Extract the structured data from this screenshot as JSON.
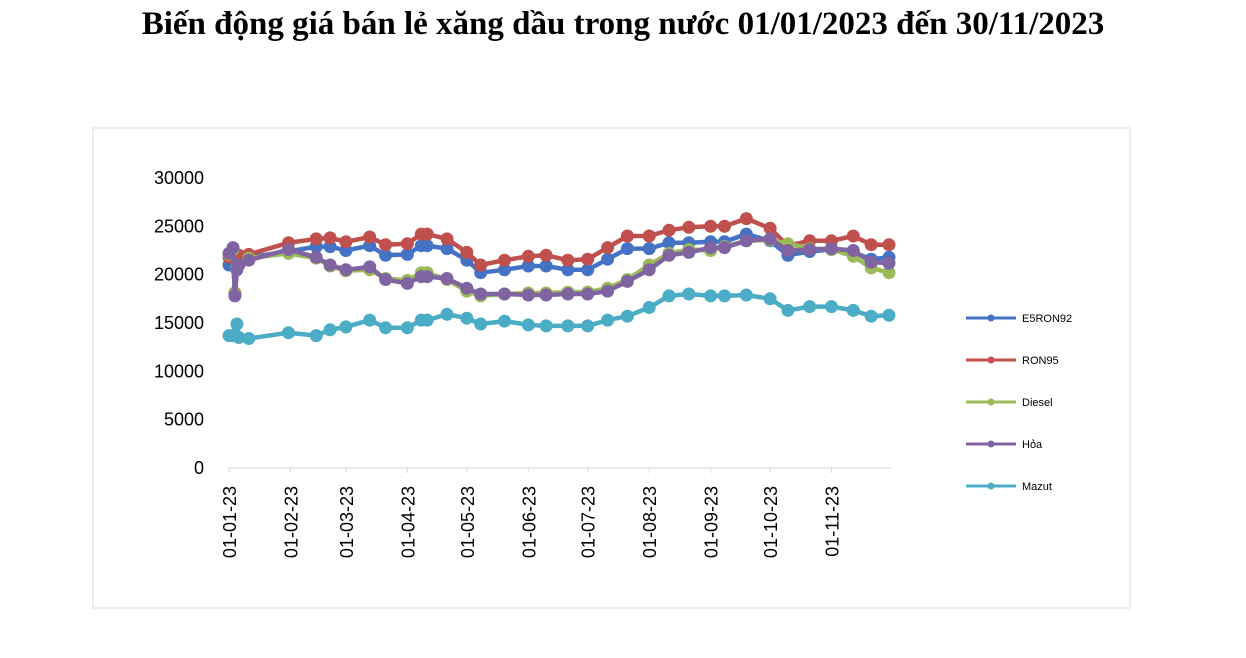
{
  "page_title": "Biến động giá bán lẻ xăng dầu trong nước 01/01/2023 đến 30/11/2023",
  "chart_data": {
    "type": "line",
    "title": "",
    "xlabel": "",
    "ylabel": "",
    "ylim": [
      0,
      30000
    ],
    "yticks": [
      0,
      5000,
      10000,
      15000,
      20000,
      25000,
      30000
    ],
    "x_tick_labels": [
      "01-01-23",
      "01-02-23",
      "01-03-23",
      "01-04-23",
      "01-05-23",
      "01-06-23",
      "01-07-23",
      "01-08-23",
      "01-09-23",
      "01-10-23",
      "01-11-23"
    ],
    "x_tick_dates": [
      "2023-01-01",
      "2023-02-01",
      "2023-03-01",
      "2023-04-01",
      "2023-05-01",
      "2023-06-01",
      "2023-07-01",
      "2023-08-01",
      "2023-09-01",
      "2023-10-01",
      "2023-11-01"
    ],
    "xlim": [
      "2023-01-01",
      "2023-12-01"
    ],
    "grid": false,
    "legend_position": "right",
    "dates": [
      "2023-01-01",
      "2023-01-03",
      "2023-01-04",
      "2023-01-05",
      "2023-01-06",
      "2023-01-11",
      "2023-01-31",
      "2023-02-14",
      "2023-02-21",
      "2023-03-01",
      "2023-03-13",
      "2023-03-21",
      "2023-04-01",
      "2023-04-08",
      "2023-04-11",
      "2023-04-21",
      "2023-05-01",
      "2023-05-08",
      "2023-05-20",
      "2023-06-01",
      "2023-06-10",
      "2023-06-21",
      "2023-07-01",
      "2023-07-11",
      "2023-07-21",
      "2023-08-01",
      "2023-08-11",
      "2023-08-21",
      "2023-09-01",
      "2023-09-08",
      "2023-09-19",
      "2023-10-01",
      "2023-10-10",
      "2023-10-21",
      "2023-11-01",
      "2023-11-12",
      "2023-11-21",
      "2023-11-30"
    ],
    "series": [
      {
        "name": "E5RON92",
        "color": "#4472c4",
        "values": [
          21000,
          22500,
          18000,
          21000,
          21500,
          21800,
          22400,
          22900,
          22900,
          22500,
          23000,
          22000,
          22100,
          23000,
          23000,
          22700,
          21500,
          20200,
          20500,
          20900,
          20900,
          20500,
          20500,
          21600,
          22700,
          22700,
          23300,
          23300,
          23400,
          23400,
          24200,
          23500,
          22000,
          22400,
          22600,
          22300,
          21600,
          21800
        ]
      },
      {
        "name": "RON95",
        "color": "#c0504d",
        "values": [
          21800,
          22000,
          18100,
          21500,
          22000,
          22100,
          23300,
          23700,
          23800,
          23400,
          23900,
          23100,
          23200,
          24200,
          24200,
          23700,
          22300,
          21000,
          21500,
          21900,
          22000,
          21500,
          21600,
          22800,
          24000,
          24000,
          24600,
          24900,
          25000,
          25000,
          25800,
          24800,
          23000,
          23500,
          23500,
          24000,
          23100,
          23100
        ]
      },
      {
        "name": "Diesel",
        "color": "#9bbb59",
        "values": [
          22100,
          22600,
          18000,
          20700,
          21000,
          21700,
          22200,
          21700,
          20900,
          20400,
          20500,
          19600,
          19400,
          20200,
          20200,
          19500,
          18300,
          17800,
          18000,
          18100,
          18100,
          18200,
          18200,
          18600,
          19500,
          21000,
          22200,
          22600,
          22500,
          22900,
          23500,
          23600,
          23200,
          22700,
          22600,
          21900,
          20700,
          20200
        ]
      },
      {
        "name": "Hỏa",
        "color": "#8064a2",
        "values": [
          22200,
          22800,
          17800,
          20500,
          21000,
          21500,
          22600,
          21800,
          21000,
          20500,
          20800,
          19500,
          19100,
          19800,
          19800,
          19600,
          18600,
          18000,
          18000,
          17900,
          17900,
          18000,
          18000,
          18300,
          19300,
          20500,
          22000,
          22300,
          22800,
          22800,
          23500,
          23700,
          22500,
          22600,
          22700,
          22500,
          21300,
          21200
        ]
      },
      {
        "name": "Mazut",
        "color": "#4bacc6",
        "values": [
          13700,
          13700,
          13800,
          14900,
          13500,
          13400,
          14000,
          13700,
          14300,
          14600,
          15300,
          14500,
          14500,
          15300,
          15300,
          15900,
          15500,
          14900,
          15200,
          14800,
          14700,
          14700,
          14700,
          15300,
          15700,
          16600,
          17800,
          18000,
          17800,
          17800,
          17900,
          17500,
          16300,
          16700,
          16700,
          16300,
          15700,
          15800
        ]
      }
    ]
  }
}
